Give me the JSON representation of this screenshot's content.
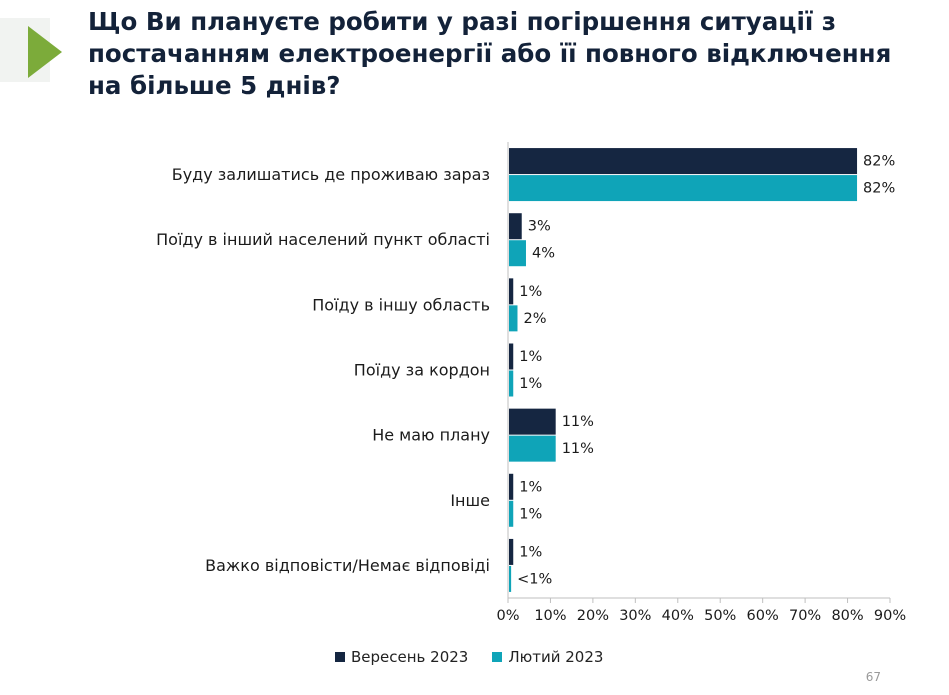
{
  "title": "Що Ви плануєте робити у разі погіршення ситуації з постачанням електроенергії або її повного відключення на більше 5 днів?",
  "page_number": "67",
  "colors": {
    "series1": "#152641",
    "series2": "#0fa4b8",
    "chevron": "#7cab3a"
  },
  "chart_data": {
    "type": "bar",
    "orientation": "horizontal",
    "categories": [
      "Буду залишатись де проживаю зараз",
      "Поїду в інший населений пункт області",
      "Поїду в іншу область",
      "Поїду за кордон",
      "Не маю плану",
      "Інше",
      "Важко відповісти/Немає відповіді"
    ],
    "series": [
      {
        "name": "Вересень 2023",
        "values": [
          82,
          3,
          1,
          1,
          11,
          1,
          1
        ],
        "labels": [
          "82%",
          "3%",
          "1%",
          "1%",
          "11%",
          "1%",
          "1%"
        ]
      },
      {
        "name": "Лютий 2023",
        "values": [
          82,
          4,
          2,
          1,
          11,
          1,
          0.5
        ],
        "labels": [
          "82%",
          "4%",
          "2%",
          "1%",
          "11%",
          "1%",
          "<1%"
        ]
      }
    ],
    "xlim": [
      0,
      90
    ],
    "xticks": [
      0,
      10,
      20,
      30,
      40,
      50,
      60,
      70,
      80,
      90
    ],
    "xtick_labels": [
      "0%",
      "10%",
      "20%",
      "30%",
      "40%",
      "50%",
      "60%",
      "70%",
      "80%",
      "90%"
    ],
    "legend_position": "bottom"
  }
}
